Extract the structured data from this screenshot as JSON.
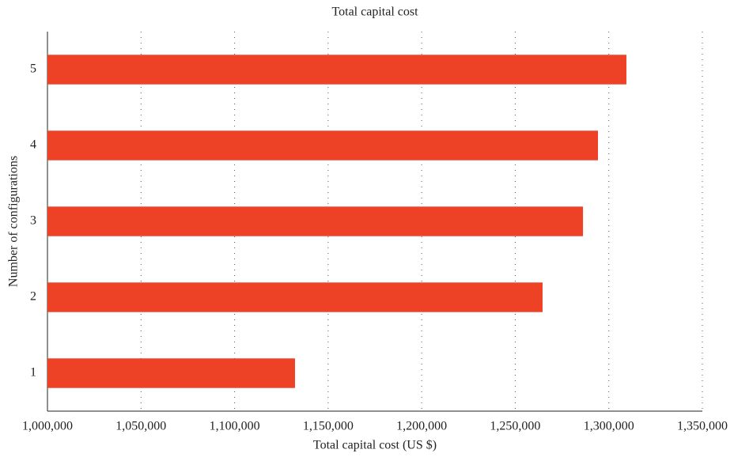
{
  "chart_data": {
    "type": "bar",
    "orientation": "horizontal",
    "title": "Total capital cost",
    "x_label": "Total capital cost (US $)",
    "y_label": "Number of configurations",
    "categories": [
      "1",
      "2",
      "3",
      "4",
      "5"
    ],
    "values": [
      1132300,
      1264600,
      1286200,
      1294200,
      1309400
    ],
    "color": "#ee4227",
    "xlim": [
      1000000,
      1350000
    ],
    "xticks": [
      {
        "value": 1000000,
        "label": "1,000,000"
      },
      {
        "value": 1050000,
        "label": "1,050,000"
      },
      {
        "value": 1100000,
        "label": "1,100,000"
      },
      {
        "value": 1150000,
        "label": "1,150,000"
      },
      {
        "value": 1200000,
        "label": "1,200,000"
      },
      {
        "value": 1250000,
        "label": "1,250,000"
      },
      {
        "value": 1300000,
        "label": "1,300,000"
      },
      {
        "value": 1350000,
        "label": "1,350,000"
      }
    ],
    "grid": true
  }
}
